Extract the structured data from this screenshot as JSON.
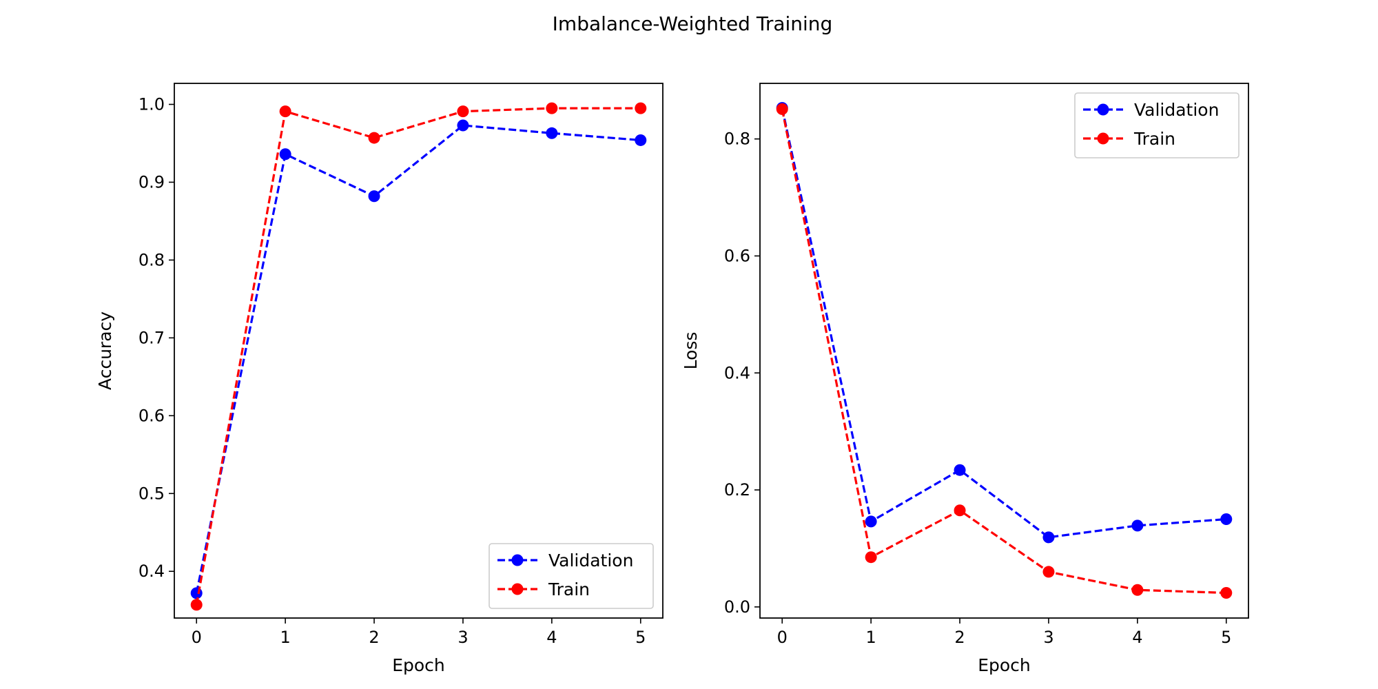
{
  "figure": {
    "title": "Imbalance-Weighted Training"
  },
  "chart_data": [
    {
      "type": "line",
      "title": "",
      "xlabel": "Epoch",
      "ylabel": "Accuracy",
      "x": [
        0,
        1,
        2,
        3,
        4,
        5
      ],
      "xticks": [
        "0",
        "1",
        "2",
        "3",
        "4",
        "5"
      ],
      "xlim": [
        -0.25,
        5.25
      ],
      "ylim": [
        0.34,
        1.027
      ],
      "yticks": [
        "0.4",
        "0.5",
        "0.6",
        "0.7",
        "0.8",
        "0.9",
        "1.0"
      ],
      "legend_position": "lower-right",
      "grid": false,
      "series": [
        {
          "name": "Validation",
          "color": "#0000ff",
          "values": [
            0.372,
            0.936,
            0.882,
            0.973,
            0.963,
            0.954
          ]
        },
        {
          "name": "Train",
          "color": "#ff0000",
          "values": [
            0.357,
            0.991,
            0.957,
            0.991,
            0.995,
            0.995
          ]
        }
      ]
    },
    {
      "type": "line",
      "title": "",
      "xlabel": "Epoch",
      "ylabel": "Loss",
      "x": [
        0,
        1,
        2,
        3,
        4,
        5
      ],
      "xticks": [
        "0",
        "1",
        "2",
        "3",
        "4",
        "5"
      ],
      "xlim": [
        -0.25,
        5.25
      ],
      "ylim": [
        -0.019,
        0.895
      ],
      "yticks": [
        "0.0",
        "0.2",
        "0.4",
        "0.6",
        "0.8"
      ],
      "legend_position": "upper-right",
      "grid": false,
      "series": [
        {
          "name": "Validation",
          "color": "#0000ff",
          "values": [
            0.853,
            0.146,
            0.234,
            0.119,
            0.139,
            0.15
          ]
        },
        {
          "name": "Train",
          "color": "#ff0000",
          "values": [
            0.851,
            0.085,
            0.165,
            0.06,
            0.029,
            0.024
          ]
        }
      ]
    }
  ]
}
